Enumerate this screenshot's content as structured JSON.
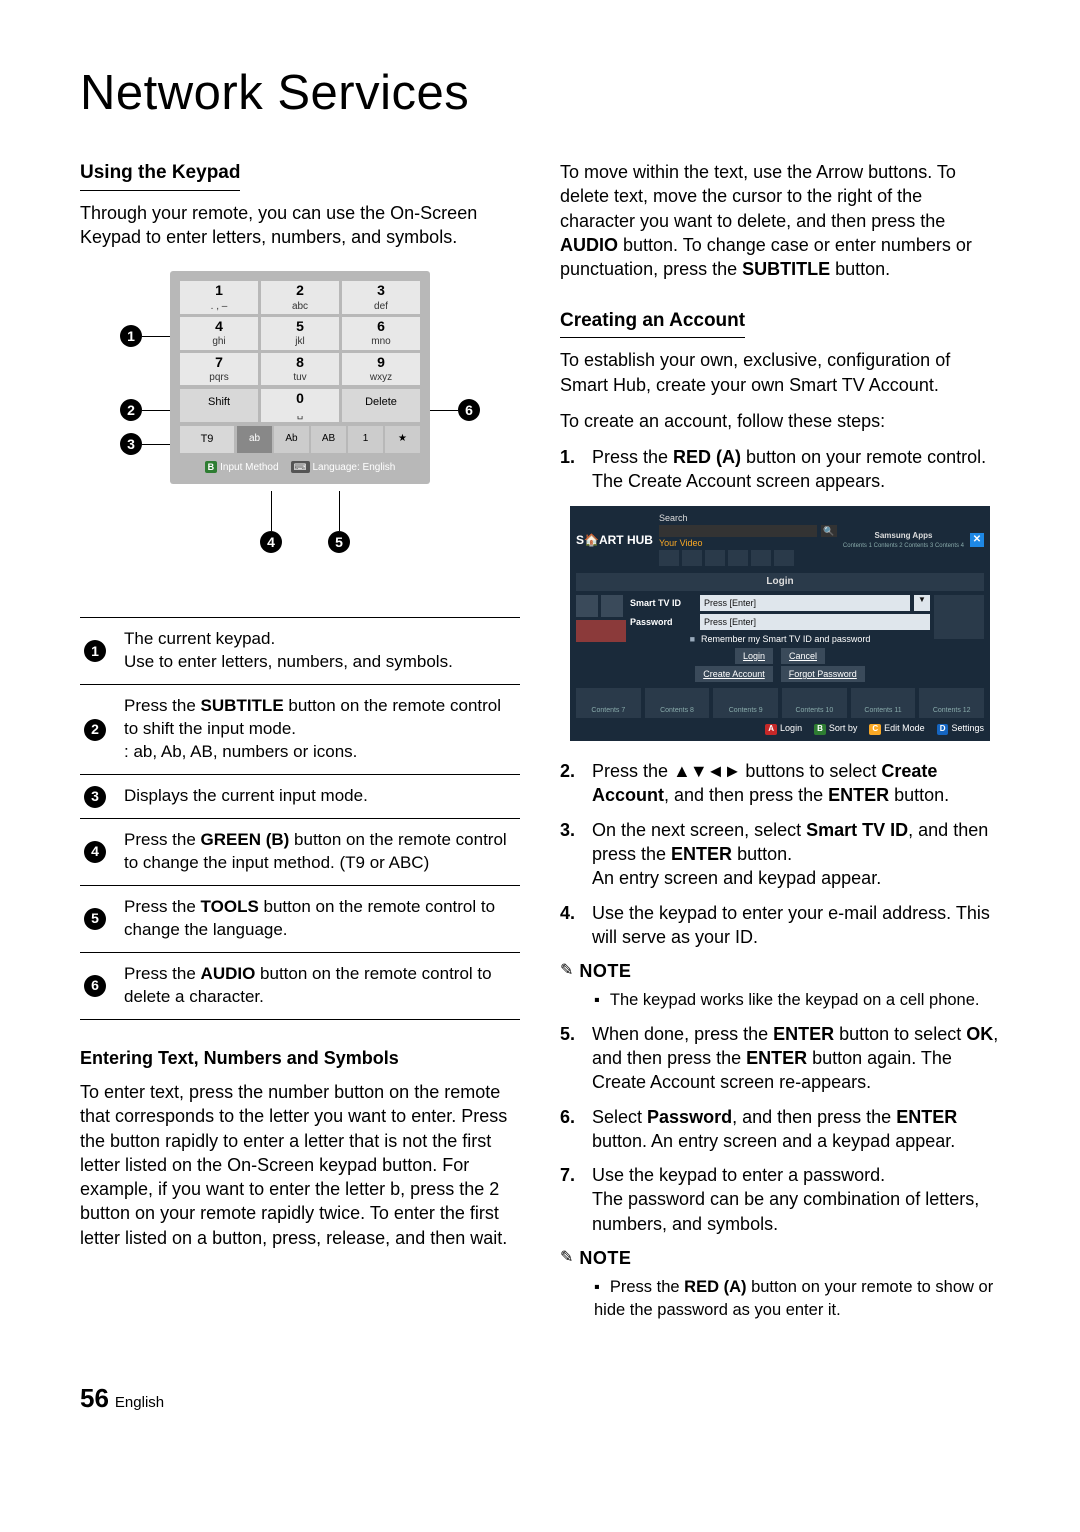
{
  "title": "Network Services",
  "col1": {
    "h1": "Using the Keypad",
    "intro": "Through your remote, you can use the On-Screen Keypad to enter letters, numbers, and symbols.",
    "keypad": {
      "cells": [
        {
          "n": "1",
          "s": ". , –"
        },
        {
          "n": "2",
          "s": "abc"
        },
        {
          "n": "3",
          "s": "def"
        },
        {
          "n": "4",
          "s": "ghi"
        },
        {
          "n": "5",
          "s": "jkl"
        },
        {
          "n": "6",
          "s": "mno"
        },
        {
          "n": "7",
          "s": "pqrs"
        },
        {
          "n": "8",
          "s": "tuv"
        },
        {
          "n": "9",
          "s": "wxyz"
        }
      ],
      "shift": "Shift",
      "zero": "0",
      "space": "␣",
      "delete": "Delete",
      "t9": "T9",
      "modes": [
        "ab",
        "Ab",
        "AB",
        "1",
        "★"
      ],
      "foot_b": "B",
      "foot_input": "Input Method",
      "foot_lang_ico": "⌨",
      "foot_lang": "Language: English"
    },
    "callouts": {
      "c1": "1",
      "c2": "2",
      "c3": "3",
      "c4": "4",
      "c5": "5",
      "c6": "6"
    },
    "legend": [
      {
        "n": "1",
        "t": "The current keypad.\nUse to enter letters, numbers, and symbols."
      },
      {
        "n": "2",
        "pre": "Press the ",
        "b": "SUBTITLE",
        "post": " button on the remote control to shift the input mode.\n: ab, Ab, AB, numbers or icons."
      },
      {
        "n": "3",
        "t": "Displays the current input mode."
      },
      {
        "n": "4",
        "pre": "Press the ",
        "b": "GREEN (B)",
        "post": " button on the remote control to change the input method. (T9 or ABC)"
      },
      {
        "n": "5",
        "pre": "Press the ",
        "b": "TOOLS",
        "post": " button on the remote control to change the language."
      },
      {
        "n": "6",
        "pre": "Press the ",
        "b": "AUDIO",
        "post": " button on the remote control to delete a character."
      }
    ],
    "entering_head": "Entering Text, Numbers and Symbols",
    "entering_body": "To enter text, press the number button on the remote that corresponds to the letter you want to enter. Press the button rapidly to enter a letter that is not the first letter listed on the On-Screen keypad button. For example, if you want to enter the letter b, press the 2 button on your remote rapidly twice. To enter the first letter listed on a button, press, release, and then wait."
  },
  "col2": {
    "move_a": "To move within the text, use the Arrow buttons. To delete text, move the cursor to the right of the character you want to delete, and then press the ",
    "move_b": "AUDIO",
    "move_c": " button. To change case or enter numbers or punctuation, press the ",
    "move_d": "SUBTITLE",
    "move_e": " button.",
    "h2": "Creating an Account",
    "acc_p1": "To establish your own, exclusive, configuration of Smart Hub, create your own Smart TV Account.",
    "acc_p2": "To create an account, follow these steps:",
    "step1_a": "Press the ",
    "step1_b": "RED (A)",
    "step1_c": " button on your remote control. The Create Account screen appears.",
    "hub": {
      "logo_a": "S",
      "logo_b": "ART HUB",
      "search": "Search",
      "yourvideo": "Your Video",
      "apps": "Samsung Apps",
      "apps_sub": "Contents 1    Contents 2    Contents 3    Contents 4",
      "x": "✕",
      "login": "Login",
      "id_lbl": "Smart TV ID",
      "id_ph": "Press [Enter]",
      "pw_lbl": "Password",
      "pw_ph": "Press [Enter]",
      "remember": "Remember my Smart TV ID and password",
      "b_login": "Login",
      "b_cancel": "Cancel",
      "b_create": "Create Account",
      "b_forgot": "Forgot Password",
      "thumb_lbls": [
        "Contents 7",
        "Contents 8",
        "Contents 9",
        "Contents 10",
        "Contents 11",
        "Contents 12"
      ],
      "foot_a": "Login",
      "foot_b": "Sort by",
      "foot_c": "Edit Mode",
      "foot_d": "Settings"
    },
    "step2_a": "Press the ",
    "step2_arrows": "▲▼◄►",
    "step2_b": " buttons to select ",
    "step2_c": "Create Account",
    "step2_d": ", and then press the ",
    "step2_e": "ENTER",
    "step2_f": " button.",
    "step3_a": "On the next screen, select ",
    "step3_b": "Smart TV ID",
    "step3_c": ", and then press the ",
    "step3_d": "ENTER",
    "step3_e": " button.",
    "step3_f": "An entry screen and keypad appear.",
    "step4": "Use the keypad to enter your e-mail address. This will serve as your ID.",
    "note": "NOTE",
    "note1": "The keypad works like the keypad on a cell phone.",
    "step5_a": "When done, press the ",
    "step5_b": "ENTER",
    "step5_c": " button to select ",
    "step5_d": "OK",
    "step5_e": ", and then press the ",
    "step5_f": "ENTER",
    "step5_g": " button again. The Create Account screen re-appears.",
    "step6_a": "Select ",
    "step6_b": "Password",
    "step6_c": ", and then press the ",
    "step6_d": "ENTER",
    "step6_e": " button. An entry screen and a keypad appear.",
    "step7_a": "Use the keypad to enter a password.",
    "step7_b": "The password can be any combination of letters, numbers, and symbols.",
    "note2_a": "Press the ",
    "note2_b": "RED (A)",
    "note2_c": " button on your remote to show or hide the password as you enter it."
  },
  "foot": {
    "page": "56",
    "lang": "English"
  }
}
